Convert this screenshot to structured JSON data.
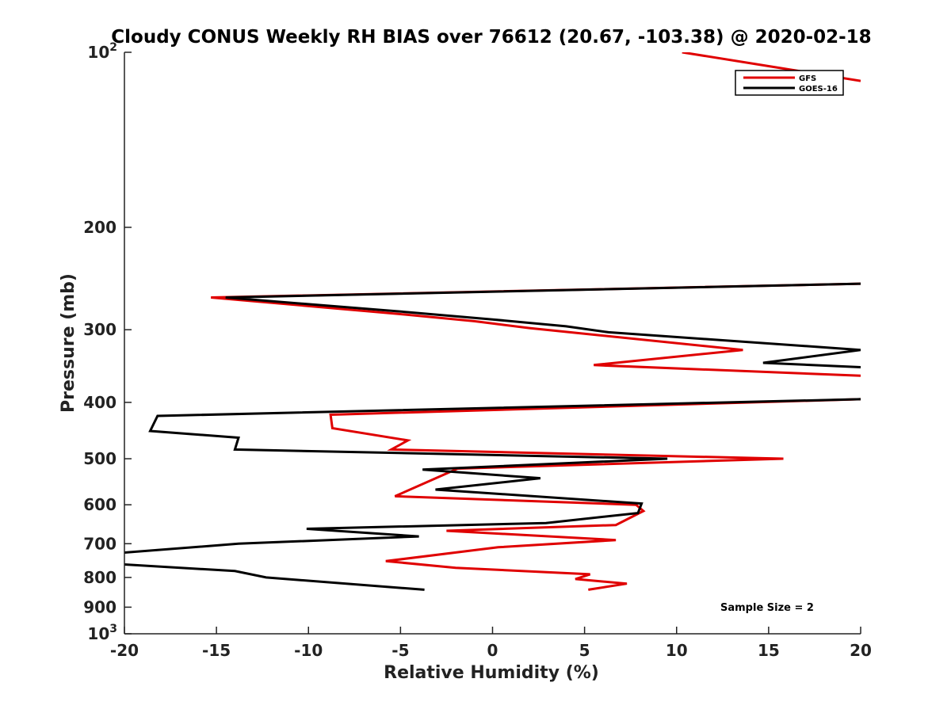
{
  "chart_data": {
    "type": "line",
    "title": "Cloudy CONUS Weekly RH BIAS over 76612 (20.67, -103.38) @ 2020-02-18",
    "xlabel": "Relative Humidity (%)",
    "ylabel": "Pressure (mb)",
    "xlim": [
      -20,
      20
    ],
    "ylim": [
      100,
      1000
    ],
    "yscale": "log",
    "y_reversed": true,
    "grid": false,
    "legend_position": "top-right",
    "x_ticks": [
      -20,
      -15,
      -10,
      -5,
      0,
      5,
      10,
      15,
      20
    ],
    "y_ticks": [
      200,
      300,
      400,
      500,
      600,
      700,
      800,
      900
    ],
    "y_ticks_power": [
      {
        "value": 100,
        "base": "10",
        "exponent": "2"
      },
      {
        "value": 1000,
        "base": "10",
        "exponent": "3"
      }
    ],
    "annotation": "Sample Size = 2",
    "series": [
      {
        "name": "GFS",
        "color": "#e00000",
        "points": [
          [
            10.3,
            100
          ],
          [
            20,
            112
          ],
          null,
          [
            20,
            250
          ],
          [
            -15.3,
            264
          ],
          [
            -5,
            282
          ],
          [
            -1,
            290
          ],
          [
            2,
            298
          ],
          [
            13.6,
            325
          ],
          [
            5.5,
            345
          ],
          [
            20,
            360
          ],
          null,
          [
            20,
            395
          ],
          [
            -8.8,
            420
          ],
          [
            -8.7,
            443
          ],
          [
            -4.6,
            465
          ],
          [
            -5.5,
            482
          ],
          [
            15.8,
            500
          ],
          [
            -1.9,
            520
          ],
          [
            -5.3,
            580
          ],
          [
            7.8,
            600
          ],
          [
            8.2,
            615
          ],
          [
            6.7,
            650
          ],
          [
            -2.5,
            665
          ],
          [
            6.7,
            690
          ],
          [
            0.3,
            710
          ],
          [
            -5.8,
            750
          ],
          [
            -2,
            770
          ],
          [
            5.3,
            790
          ],
          [
            4.5,
            805
          ],
          [
            7.3,
            820
          ],
          [
            5.2,
            840
          ]
        ]
      },
      {
        "name": "GOES-16",
        "color": "#000000",
        "points": [
          [
            20,
            250
          ],
          [
            -14.5,
            264
          ],
          [
            -4.5,
            280
          ],
          [
            0,
            288
          ],
          [
            4,
            296
          ],
          [
            6.3,
            303
          ],
          [
            20,
            325
          ],
          [
            14.7,
            342
          ],
          [
            20,
            348
          ],
          null,
          [
            20,
            395
          ],
          [
            -18.2,
            422
          ],
          [
            -18.6,
            448
          ],
          [
            -13.8,
            460
          ],
          [
            -14,
            482
          ],
          [
            9.5,
            500
          ],
          [
            -3.8,
            522
          ],
          [
            2.6,
            540
          ],
          [
            -3.1,
            565
          ],
          [
            8.1,
            597
          ],
          [
            7.9,
            620
          ],
          [
            2.9,
            645
          ],
          [
            -10.1,
            660
          ],
          [
            -4,
            680
          ],
          [
            -13.8,
            700
          ],
          [
            -20,
            725
          ],
          null,
          [
            -20,
            760
          ],
          [
            -14,
            780
          ],
          [
            -12.3,
            800
          ],
          [
            -3.7,
            840
          ]
        ]
      }
    ]
  }
}
